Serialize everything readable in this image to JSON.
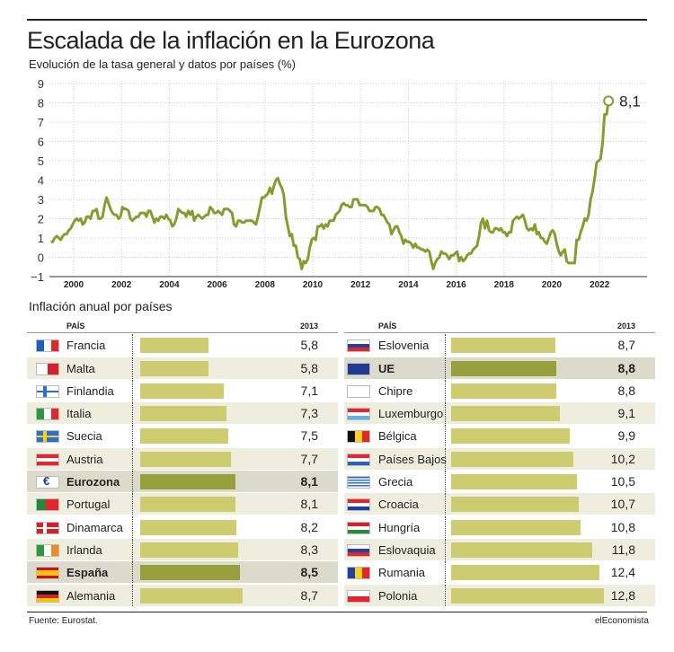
{
  "header": {
    "title": "Escalada de la inflación en la Eurozona",
    "subtitle": "Evolución de la tasa general y datos por países (%)"
  },
  "chart_data": {
    "type": "line",
    "title": "Escalada de la inflación en la Eurozona",
    "subtitle": "Evolución de la tasa general y datos por países (%)",
    "ylim": [
      -1,
      9
    ],
    "yticks": [
      "9",
      "8",
      "7",
      "6",
      "5",
      "4",
      "3",
      "2",
      "1",
      "0",
      "−1"
    ],
    "xticks": [
      "2000",
      "2002",
      "2004",
      "2006",
      "2008",
      "2010",
      "2012",
      "2014",
      "2016",
      "2018",
      "2020",
      "2022"
    ],
    "grid": true,
    "line_color": "#8a9a2e",
    "end_label": "8,1",
    "monthly": [
      {
        "year": 1999,
        "values": [
          0.8,
          0.8,
          1.0,
          1.1,
          1.0,
          0.9,
          1.1,
          1.2,
          1.2,
          1.4,
          1.5,
          1.7
        ]
      },
      {
        "year": 2000,
        "values": [
          1.9,
          2.0,
          1.9,
          2.0,
          1.7,
          1.8,
          2.1,
          2.1,
          2.0,
          2.4,
          2.4,
          2.5
        ]
      },
      {
        "year": 2001,
        "values": [
          2.0,
          2.0,
          2.1,
          2.7,
          3.1,
          2.8,
          2.5,
          2.3,
          2.2,
          2.2,
          2.0,
          2.1
        ]
      },
      {
        "year": 2002,
        "values": [
          2.6,
          2.5,
          2.5,
          2.4,
          2.0,
          1.9,
          2.0,
          2.1,
          2.1,
          2.3,
          2.3,
          2.3
        ]
      },
      {
        "year": 2003,
        "values": [
          2.1,
          2.4,
          2.4,
          2.1,
          1.8,
          2.0,
          1.9,
          2.1,
          2.1,
          2.0,
          2.2,
          2.0
        ]
      },
      {
        "year": 2004,
        "values": [
          1.9,
          1.6,
          1.7,
          2.0,
          2.5,
          2.4,
          2.3,
          2.3,
          2.1,
          2.4,
          2.2,
          2.4
        ]
      },
      {
        "year": 2005,
        "values": [
          1.9,
          2.1,
          2.2,
          2.1,
          2.0,
          2.1,
          2.2,
          2.2,
          2.6,
          2.5,
          2.3,
          2.3
        ]
      },
      {
        "year": 2006,
        "values": [
          2.4,
          2.3,
          2.2,
          2.5,
          2.5,
          2.5,
          2.4,
          2.3,
          1.7,
          1.6,
          1.9,
          1.9
        ]
      },
      {
        "year": 2007,
        "values": [
          1.8,
          1.8,
          1.9,
          1.9,
          1.9,
          1.9,
          1.8,
          1.7,
          2.1,
          2.6,
          3.1,
          3.1
        ]
      },
      {
        "year": 2008,
        "values": [
          3.2,
          3.3,
          3.6,
          3.3,
          3.7,
          4.0,
          4.1,
          3.8,
          3.6,
          3.2,
          2.1,
          1.6
        ]
      },
      {
        "year": 2009,
        "values": [
          1.1,
          1.2,
          0.6,
          0.6,
          0.0,
          -0.1,
          -0.6,
          -0.2,
          -0.3,
          -0.1,
          0.5,
          0.9
        ]
      },
      {
        "year": 2010,
        "values": [
          1.0,
          0.9,
          1.6,
          1.6,
          1.7,
          1.5,
          1.7,
          1.6,
          1.9,
          1.9,
          1.9,
          2.2
        ]
      },
      {
        "year": 2011,
        "values": [
          2.3,
          2.4,
          2.7,
          2.8,
          2.7,
          2.7,
          2.6,
          2.6,
          3.0,
          3.0,
          3.0,
          2.7
        ]
      },
      {
        "year": 2012,
        "values": [
          2.7,
          2.7,
          2.7,
          2.6,
          2.4,
          2.4,
          2.4,
          2.6,
          2.6,
          2.5,
          2.2,
          2.2
        ]
      },
      {
        "year": 2013,
        "values": [
          2.0,
          1.8,
          1.7,
          1.2,
          1.4,
          1.6,
          1.6,
          1.3,
          1.1,
          0.7,
          0.9,
          0.8
        ]
      },
      {
        "year": 2014,
        "values": [
          0.8,
          0.7,
          0.5,
          0.7,
          0.5,
          0.5,
          0.4,
          0.4,
          0.3,
          0.4,
          0.3,
          -0.2
        ]
      },
      {
        "year": 2015,
        "values": [
          -0.6,
          -0.3,
          -0.1,
          0.0,
          0.3,
          0.2,
          0.2,
          0.1,
          -0.1,
          0.1,
          0.1,
          0.2
        ]
      },
      {
        "year": 2016,
        "values": [
          0.3,
          -0.2,
          0.0,
          -0.2,
          -0.1,
          0.1,
          0.2,
          0.2,
          0.4,
          0.5,
          0.6,
          1.1
        ]
      },
      {
        "year": 2017,
        "values": [
          1.8,
          2.0,
          1.5,
          1.9,
          1.4,
          1.3,
          1.3,
          1.5,
          1.5,
          1.4,
          1.5,
          1.3
        ]
      },
      {
        "year": 2018,
        "values": [
          1.3,
          1.1,
          1.3,
          1.3,
          1.9,
          2.0,
          2.1,
          2.0,
          2.1,
          2.2,
          1.9,
          1.5
        ]
      },
      {
        "year": 2019,
        "values": [
          1.4,
          1.5,
          1.4,
          1.7,
          1.2,
          1.3,
          1.0,
          1.0,
          0.8,
          0.7,
          1.0,
          1.3
        ]
      },
      {
        "year": 2020,
        "values": [
          1.4,
          1.2,
          0.7,
          0.3,
          0.1,
          0.3,
          0.4,
          -0.2,
          -0.3,
          -0.3,
          -0.3,
          -0.3
        ]
      },
      {
        "year": 2021,
        "values": [
          0.9,
          0.9,
          1.3,
          1.6,
          2.0,
          1.9,
          2.2,
          3.0,
          3.4,
          4.1,
          4.9,
          5.0
        ]
      },
      {
        "year": 2022,
        "values": [
          5.1,
          5.9,
          7.4,
          7.4,
          8.1
        ]
      }
    ]
  },
  "table": {
    "section_title": "Inflación anual por países",
    "col_country": "PAÍS",
    "col_year": "2013",
    "bar_color": "#cdcc71",
    "highlight_bar_color": "#97a03c",
    "left": [
      {
        "name": "Francia",
        "value": 5.8,
        "label": "5,8",
        "flag": "fr"
      },
      {
        "name": "Malta",
        "value": 5.8,
        "label": "5,8",
        "flag": "mt"
      },
      {
        "name": "Finlandia",
        "value": 7.1,
        "label": "7,1",
        "flag": "fi"
      },
      {
        "name": "Italia",
        "value": 7.3,
        "label": "7,3",
        "flag": "it"
      },
      {
        "name": "Suecia",
        "value": 7.5,
        "label": "7,5",
        "flag": "se"
      },
      {
        "name": "Austria",
        "value": 7.7,
        "label": "7,7",
        "flag": "at"
      },
      {
        "name": "Eurozona",
        "value": 8.1,
        "label": "8,1",
        "flag": "euro",
        "highlight": true
      },
      {
        "name": "Portugal",
        "value": 8.1,
        "label": "8,1",
        "flag": "pt"
      },
      {
        "name": "Dinamarca",
        "value": 8.2,
        "label": "8,2",
        "flag": "dk"
      },
      {
        "name": "Irlanda",
        "value": 8.3,
        "label": "8,3",
        "flag": "ie"
      },
      {
        "name": "España",
        "value": 8.5,
        "label": "8,5",
        "flag": "es",
        "highlight": true
      },
      {
        "name": "Alemania",
        "value": 8.7,
        "label": "8,7",
        "flag": "de"
      }
    ],
    "right": [
      {
        "name": "Eslovenia",
        "value": 8.7,
        "label": "8,7",
        "flag": "si"
      },
      {
        "name": "UE",
        "value": 8.8,
        "label": "8,8",
        "flag": "eu",
        "highlight": true
      },
      {
        "name": "Chipre",
        "value": 8.8,
        "label": "8,8",
        "flag": "cy"
      },
      {
        "name": "Luxemburgo",
        "value": 9.1,
        "label": "9,1",
        "flag": "lu"
      },
      {
        "name": "Bélgica",
        "value": 9.9,
        "label": "9,9",
        "flag": "be"
      },
      {
        "name": "Países Bajos",
        "value": 10.2,
        "label": "10,2",
        "flag": "nl"
      },
      {
        "name": "Grecia",
        "value": 10.5,
        "label": "10,5",
        "flag": "gr"
      },
      {
        "name": "Croacia",
        "value": 10.7,
        "label": "10,7",
        "flag": "hr"
      },
      {
        "name": "Hungría",
        "value": 10.8,
        "label": "10,8",
        "flag": "hu"
      },
      {
        "name": "Eslovaquia",
        "value": 11.8,
        "label": "11,8",
        "flag": "sk"
      },
      {
        "name": "Rumania",
        "value": 12.4,
        "label": "12,4",
        "flag": "ro"
      },
      {
        "name": "Polonia",
        "value": 12.8,
        "label": "12,8",
        "flag": "pl"
      }
    ]
  },
  "footer": {
    "source": "Fuente: Eurostat.",
    "brand": "elEconomista"
  }
}
